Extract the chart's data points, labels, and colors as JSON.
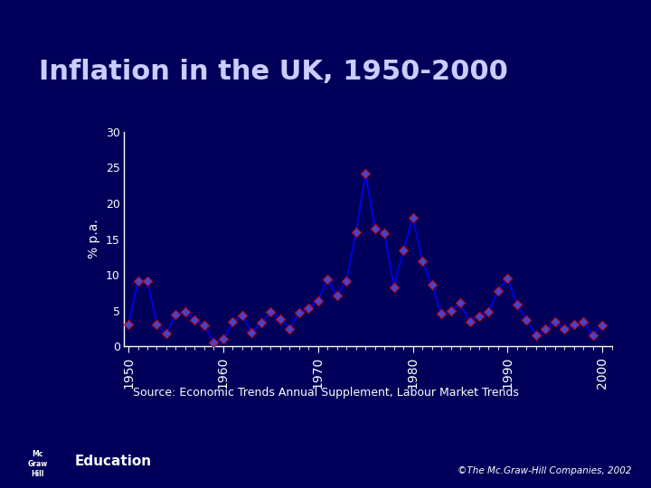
{
  "title": "Inflation in the UK, 1950-2000",
  "ylabel": "% p.a.",
  "source": "Source: Economic Trends Annual Supplement, Labour Market Trends",
  "copyright": "©The Mc.Graw-Hill Companies, 2002",
  "bg_color": "#00005a",
  "line_color": "#0000dd",
  "marker_color": "#4444cc",
  "marker_edge_color": "#cc0000",
  "text_color": "#ffffff",
  "title_color": "#ccccff",
  "years": [
    1950,
    1951,
    1952,
    1953,
    1954,
    1955,
    1956,
    1957,
    1958,
    1959,
    1960,
    1961,
    1962,
    1963,
    1964,
    1965,
    1966,
    1967,
    1968,
    1969,
    1970,
    1971,
    1972,
    1973,
    1974,
    1975,
    1976,
    1977,
    1978,
    1979,
    1980,
    1981,
    1982,
    1983,
    1984,
    1985,
    1986,
    1987,
    1988,
    1989,
    1990,
    1991,
    1992,
    1993,
    1994,
    1995,
    1996,
    1997,
    1998,
    1999,
    2000
  ],
  "inflation": [
    3.1,
    9.1,
    9.2,
    3.1,
    1.8,
    4.5,
    4.9,
    3.7,
    3.0,
    0.6,
    1.0,
    3.4,
    4.3,
    2.0,
    3.3,
    4.8,
    3.9,
    2.5,
    4.7,
    5.4,
    6.4,
    9.4,
    7.1,
    9.2,
    16.0,
    24.2,
    16.5,
    15.8,
    8.3,
    13.4,
    18.0,
    11.9,
    8.6,
    4.6,
    5.0,
    6.1,
    3.4,
    4.2,
    4.9,
    7.8,
    9.5,
    5.9,
    3.7,
    1.6,
    2.4,
    3.5,
    2.4,
    3.1,
    3.4,
    1.6,
    3.0
  ],
  "ylim": [
    0,
    30
  ],
  "yticks": [
    0,
    5,
    10,
    15,
    20,
    25,
    30
  ],
  "xtick_years": [
    1950,
    1960,
    1970,
    1980,
    1990,
    2000
  ],
  "axis_color": "#ffffff",
  "plot_bg": "#00005a",
  "education_text": "Education",
  "mc_box_color": "#cc0000"
}
